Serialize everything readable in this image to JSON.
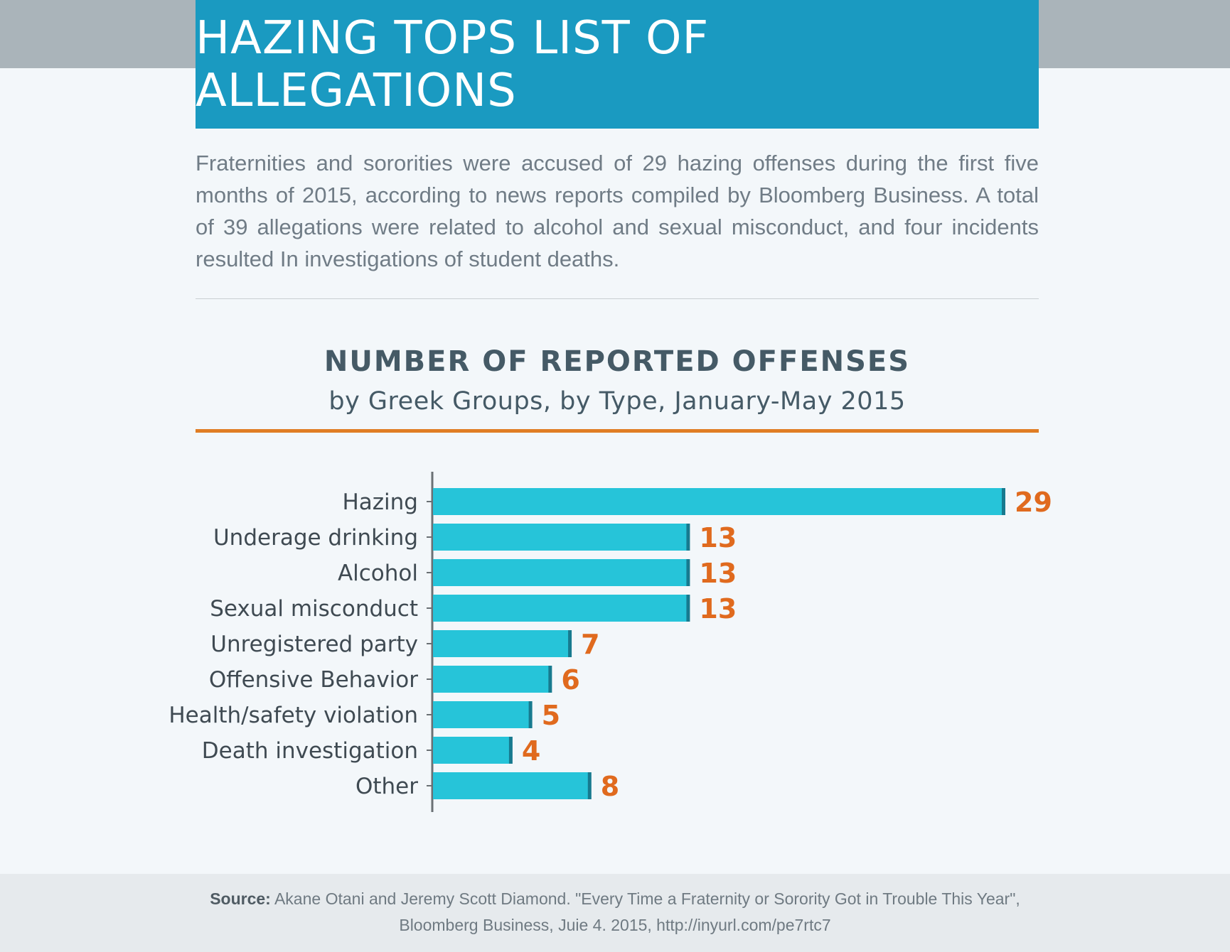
{
  "title": "HAZING TOPS LIST OF ALLEGATIONS",
  "intro": "Fraternities and sororities were accused of 29 hazing offenses during the first five months of 2015, according to news reports compiled by Bloomberg Business. A total of 39 allegations were related to alcohol and sexual misconduct, and four incidents resulted In investigations of student deaths.",
  "colors": {
    "header_bg": "#1a9ac1",
    "band": "#aab4ba",
    "bar": "#26c4d9",
    "bar_end": "#177a8f",
    "value_label": "#e06a1e",
    "accent_rule": "#e07d24"
  },
  "chart_data": {
    "type": "bar",
    "orientation": "horizontal",
    "title": "NUMBER OF REPORTED OFFENSES",
    "subtitle": "by Greek Groups, by Type, January-May 2015",
    "xlabel": "",
    "ylabel": "",
    "xlim": [
      0,
      29
    ],
    "grid": false,
    "categories": [
      "Hazing",
      "Underage drinking",
      "Alcohol",
      "Sexual misconduct",
      "Unregistered party",
      "Offensive Behavior",
      "Health/safety violation",
      "Death investigation",
      "Other"
    ],
    "values": [
      29,
      13,
      13,
      13,
      7,
      6,
      5,
      4,
      8
    ]
  },
  "source": {
    "label": "Source:",
    "line1": "Akane Otani and Jeremy Scott Diamond. \"Every Time a Fraternity or Sorority Got in Trouble This Year\",",
    "line2": "Bloomberg Business, Juie 4. 2015, http://inyurl.com/pe7rtc7"
  }
}
